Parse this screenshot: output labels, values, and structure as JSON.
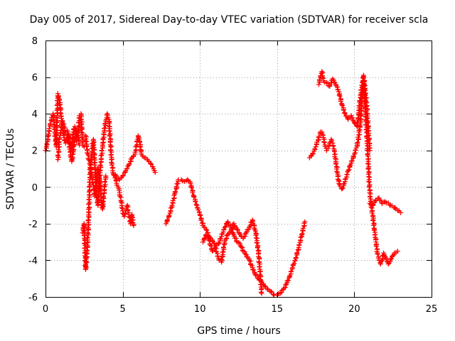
{
  "chart_data": {
    "type": "scatter",
    "title": "Day 005 of 2017, Sidereal Day-to-day VTEC variation (SDTVAR) for receiver scla",
    "xlabel": "GPS time / hours",
    "ylabel": "SDTVAR / TECUs",
    "xlim": [
      0,
      25
    ],
    "ylim": [
      -6,
      8
    ],
    "xticks": [
      0,
      5,
      10,
      15,
      20,
      25
    ],
    "yticks": [
      -6,
      -4,
      -2,
      0,
      2,
      4,
      6,
      8
    ],
    "xtick_labels": [
      "0",
      "5",
      "10",
      "15",
      "20",
      "25"
    ],
    "ytick_labels": [
      "-6",
      "-4",
      "-2",
      "0",
      "2",
      "4",
      "6",
      "8"
    ],
    "grid": true,
    "marker": "+",
    "series": [
      {
        "name": "SDTVAR",
        "color": "#ff0000",
        "segments": [
          {
            "x": [
              0.0,
              0.1,
              0.2,
              0.3,
              0.4,
              0.5,
              0.6,
              0.7,
              0.8,
              0.9,
              1.0,
              1.1,
              1.2,
              1.3,
              1.4,
              1.5,
              1.6,
              1.7,
              1.8,
              1.9,
              2.0,
              2.1,
              2.2,
              2.3,
              2.4,
              2.5
            ],
            "y": [
              2.0,
              2.3,
              2.9,
              3.4,
              3.8,
              4.0,
              3.0,
              2.2,
              5.1,
              4.8,
              4.0,
              3.3,
              2.7,
              2.4,
              2.6,
              2.9,
              2.4,
              2.1,
              3.0,
              3.3,
              2.5,
              2.6,
              3.9,
              4.0,
              2.4,
              2.2
            ]
          },
          {
            "x": [
              0.8,
              0.9,
              1.0,
              1.1,
              1.2,
              1.3,
              1.4,
              1.5,
              1.6,
              1.7,
              1.8,
              1.9,
              2.0,
              2.1,
              2.2
            ],
            "y": [
              1.5,
              2.6,
              3.1,
              3.6,
              3.3,
              3.0,
              3.1,
              2.5,
              1.9,
              1.4,
              2.0,
              2.6,
              3.1,
              2.8,
              2.3
            ]
          },
          {
            "x": [
              2.4,
              2.5,
              2.6,
              2.7,
              2.8,
              2.9,
              3.0,
              3.1,
              3.2,
              3.3,
              3.4,
              3.5,
              3.6,
              3.7,
              3.8,
              3.9,
              4.0,
              4.1,
              4.2,
              4.3,
              4.4,
              4.5,
              4.6,
              4.7,
              4.8,
              4.9,
              5.0,
              5.1,
              5.2,
              5.3,
              5.4,
              5.5,
              5.6,
              5.7
            ],
            "y": [
              -2.5,
              -2.0,
              -4.5,
              -3.5,
              -1.5,
              1.0,
              1.8,
              2.6,
              1.2,
              -0.5,
              -1.0,
              0.5,
              1.5,
              2.3,
              3.0,
              3.6,
              4.0,
              3.7,
              2.5,
              1.2,
              0.7,
              0.5,
              0.2,
              0.0,
              -0.3,
              -0.8,
              -1.3,
              -1.6,
              -1.3,
              -1.0,
              -1.5,
              -2.0,
              -1.5,
              -2.1
            ]
          },
          {
            "x": [
              2.6,
              2.7,
              2.8,
              2.9,
              3.0,
              3.1,
              3.2,
              3.3,
              3.4,
              3.5,
              3.6,
              3.7,
              3.8,
              3.9
            ],
            "y": [
              2.8,
              2.0,
              1.5,
              1.2,
              0.5,
              0.0,
              -0.5,
              0.3,
              1.0,
              0.4,
              -0.6,
              -1.2,
              -0.2,
              0.6
            ]
          },
          {
            "x": [
              4.4,
              4.6,
              4.8,
              5.0,
              5.2,
              5.4,
              5.6,
              5.8,
              6.0,
              6.1,
              6.2,
              6.4,
              6.6,
              6.8,
              7.0,
              7.1
            ],
            "y": [
              0.7,
              0.6,
              0.4,
              0.6,
              0.9,
              1.2,
              1.6,
              1.8,
              2.8,
              2.5,
              1.8,
              1.6,
              1.5,
              1.3,
              1.0,
              0.8
            ]
          },
          {
            "x": [
              7.8,
              8.0,
              8.2,
              8.4,
              8.6,
              8.8,
              9.0,
              9.2,
              9.4,
              9.6,
              9.8,
              10.0,
              10.2,
              10.4,
              10.6,
              10.8,
              11.0,
              11.2,
              11.4,
              11.6,
              11.8,
              12.0,
              12.2,
              12.4,
              12.6,
              12.8,
              13.0,
              13.2,
              13.4,
              13.6,
              13.8,
              14.0,
              14.2,
              14.4,
              14.6,
              14.8,
              15.0,
              15.2,
              15.4,
              15.6,
              15.8,
              16.0,
              16.2,
              16.4,
              16.6,
              16.8
            ],
            "y": [
              -2.0,
              -1.6,
              -1.0,
              -0.3,
              0.4,
              0.4,
              0.3,
              0.4,
              0.2,
              -0.5,
              -1.0,
              -1.5,
              -2.1,
              -2.3,
              -2.7,
              -2.9,
              -3.2,
              -3.1,
              -2.7,
              -2.2,
              -1.9,
              -2.2,
              -2.6,
              -3.0,
              -3.1,
              -3.5,
              -3.7,
              -4.0,
              -4.4,
              -4.8,
              -5.0,
              -5.2,
              -5.4,
              -5.6,
              -5.7,
              -5.9,
              -5.9,
              -5.8,
              -5.6,
              -5.3,
              -4.9,
              -4.4,
              -3.9,
              -3.3,
              -2.6,
              -1.9
            ]
          },
          {
            "x": [
              10.2,
              10.4,
              10.6,
              10.8,
              11.0,
              11.2,
              11.4,
              11.6,
              11.8,
              12.0,
              12.2,
              12.4,
              12.6,
              12.8,
              13.0,
              13.2,
              13.4,
              13.6,
              13.8,
              14.0
            ],
            "y": [
              -3.0,
              -2.6,
              -2.9,
              -3.5,
              -3.3,
              -3.9,
              -4.1,
              -3.0,
              -2.6,
              -2.4,
              -2.0,
              -2.3,
              -2.6,
              -2.8,
              -2.5,
              -2.2,
              -1.8,
              -2.4,
              -3.6,
              -5.8
            ]
          },
          {
            "x": [
              17.1,
              17.3,
              17.5,
              17.7,
              17.8,
              17.9,
              18.0,
              18.1,
              18.2,
              18.3,
              18.4,
              18.5,
              18.6,
              18.7,
              18.8,
              18.9,
              19.0,
              19.2,
              19.4,
              19.6,
              19.8,
              20.0,
              20.2,
              20.4,
              20.5,
              20.6,
              20.7,
              20.8,
              20.9,
              21.0,
              21.1,
              21.2,
              21.3,
              21.4,
              21.5,
              21.6,
              21.7,
              21.8,
              21.9,
              22.0,
              22.2,
              22.4,
              22.6,
              22.8
            ],
            "y": [
              1.6,
              1.8,
              2.2,
              2.7,
              3.0,
              3.0,
              2.7,
              2.3,
              2.0,
              2.1,
              2.4,
              2.6,
              2.4,
              2.0,
              1.4,
              0.8,
              0.2,
              -0.1,
              0.3,
              0.9,
              1.3,
              1.8,
              2.3,
              3.5,
              5.0,
              5.8,
              4.5,
              3.0,
              1.4,
              -0.3,
              -1.0,
              -1.6,
              -2.3,
              -3.0,
              -3.6,
              -4.0,
              -4.2,
              -4.0,
              -3.6,
              -3.8,
              -4.2,
              -3.9,
              -3.6,
              -3.5
            ]
          },
          {
            "x": [
              17.7,
              17.8,
              17.9,
              18.0,
              18.2,
              18.4,
              18.6,
              18.8,
              19.0,
              19.2,
              19.4,
              19.6,
              19.8,
              20.0,
              20.2,
              20.4,
              20.6,
              20.8,
              21.0
            ],
            "y": [
              5.6,
              6.0,
              6.3,
              5.8,
              5.7,
              5.5,
              5.9,
              5.6,
              5.2,
              4.5,
              4.0,
              3.7,
              3.9,
              3.5,
              3.3,
              5.0,
              6.1,
              4.4,
              2.0
            ]
          },
          {
            "x": [
              21.0,
              21.2,
              21.4,
              21.6,
              21.8,
              22.0,
              22.9,
              23.0
            ],
            "y": [
              -0.9,
              -1.0,
              -0.7,
              -0.6,
              -0.9,
              -0.8,
              -1.3,
              -1.4
            ]
          }
        ]
      }
    ]
  }
}
